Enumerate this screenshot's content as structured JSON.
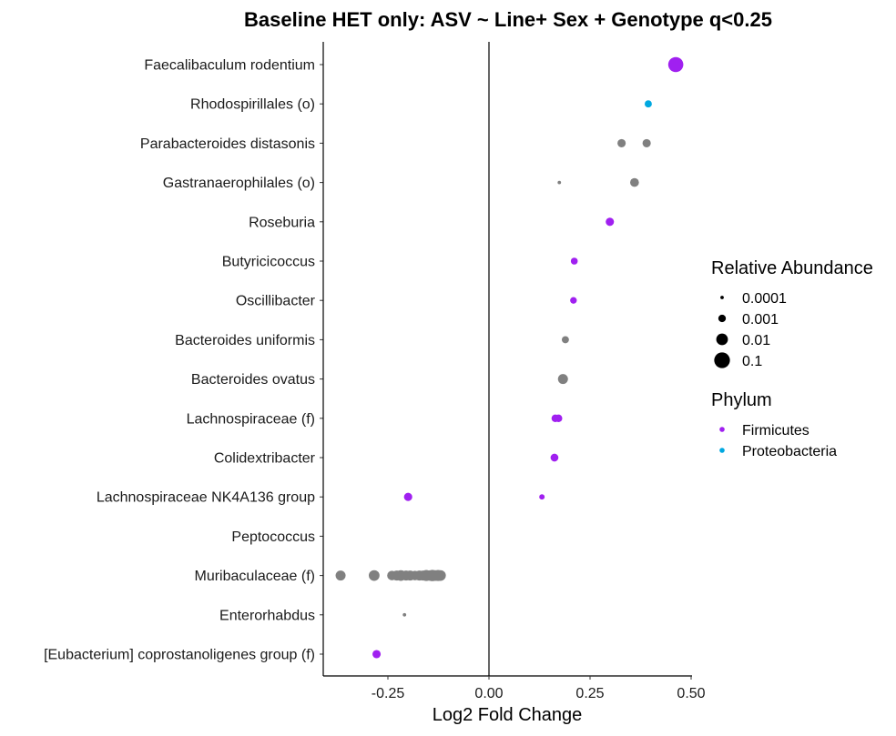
{
  "chart_data": {
    "type": "scatter",
    "title": "Baseline HET only: ASV ~ Line+ Sex + Genotype q<0.25",
    "xlabel": "Log2 Fold Change",
    "ylabel": "",
    "xlim": [
      -0.41,
      0.5
    ],
    "x_ticks": [
      -0.25,
      0.0,
      0.25,
      0.5
    ],
    "x_tick_labels": [
      "-0.25",
      "0.00",
      "0.25",
      "0.50"
    ],
    "reference_line_x": 0,
    "grid": false,
    "legend_position": "right",
    "categories": [
      "Faecalibaculum rodentium",
      "Rhodospirillales (o)",
      "Parabacteroides distasonis",
      "Gastranaerophilales (o)",
      "Roseburia",
      "Butyricicoccus",
      "Oscillibacter",
      "Bacteroides uniformis",
      "Bacteroides ovatus",
      "Lachnospiraceae (f)",
      "Colidextribacter",
      "Lachnospiraceae NK4A136 group",
      "Peptococcus",
      "Muribaculaceae (f)",
      "Enterorhabdus",
      "[Eubacterium] coprostanoligenes group (f)"
    ],
    "colors": {
      "Firmicutes": "#a020f0",
      "Proteobacteria": "#00a8e0",
      "Other": "#808080"
    },
    "size_legend": {
      "title": "Relative Abundance",
      "values": [
        0.0001,
        0.001,
        0.01,
        0.1
      ],
      "labels": [
        "0.0001",
        "0.001",
        "0.01",
        "0.1"
      ]
    },
    "color_legend": {
      "title": "Phylum",
      "entries": [
        "Firmicutes",
        "Proteobacteria"
      ]
    },
    "points": [
      {
        "category": "Faecalibaculum rodentium",
        "x": 0.462,
        "abundance": 0.07,
        "phylum": "Firmicutes"
      },
      {
        "category": "Rhodospirillales (o)",
        "x": 0.394,
        "abundance": 0.0008,
        "phylum": "Proteobacteria"
      },
      {
        "category": "Parabacteroides distasonis",
        "x": 0.328,
        "abundance": 0.0015,
        "phylum": "Other"
      },
      {
        "category": "Parabacteroides distasonis",
        "x": 0.39,
        "abundance": 0.0015,
        "phylum": "Other"
      },
      {
        "category": "Gastranaerophilales (o)",
        "x": 0.174,
        "abundance": 0.0001,
        "phylum": "Other"
      },
      {
        "category": "Gastranaerophilales (o)",
        "x": 0.36,
        "abundance": 0.002,
        "phylum": "Other"
      },
      {
        "category": "Roseburia",
        "x": 0.299,
        "abundance": 0.0015,
        "phylum": "Firmicutes"
      },
      {
        "category": "Butyricicoccus",
        "x": 0.211,
        "abundance": 0.0007,
        "phylum": "Firmicutes"
      },
      {
        "category": "Oscillibacter",
        "x": 0.209,
        "abundance": 0.0006,
        "phylum": "Firmicutes"
      },
      {
        "category": "Bacteroides uniformis",
        "x": 0.189,
        "abundance": 0.0008,
        "phylum": "Other"
      },
      {
        "category": "Bacteroides ovatus",
        "x": 0.183,
        "abundance": 0.004,
        "phylum": "Other"
      },
      {
        "category": "Lachnospiraceae (f)",
        "x": 0.164,
        "abundance": 0.001,
        "phylum": "Firmicutes"
      },
      {
        "category": "Lachnospiraceae (f)",
        "x": 0.172,
        "abundance": 0.001,
        "phylum": "Firmicutes"
      },
      {
        "category": "Colidextribacter",
        "x": 0.162,
        "abundance": 0.0012,
        "phylum": "Firmicutes"
      },
      {
        "category": "Lachnospiraceae NK4A136 group",
        "x": -0.2,
        "abundance": 0.0015,
        "phylum": "Firmicutes"
      },
      {
        "category": "Lachnospiraceae NK4A136 group",
        "x": 0.131,
        "abundance": 0.0003,
        "phylum": "Firmicutes"
      },
      {
        "category": "Muribaculaceae (f)",
        "x": -0.367,
        "abundance": 0.004,
        "phylum": "Other"
      },
      {
        "category": "Muribaculaceae (f)",
        "x": -0.284,
        "abundance": 0.006,
        "phylum": "Other"
      },
      {
        "category": "Muribaculaceae (f)",
        "x": -0.24,
        "abundance": 0.003,
        "phylum": "Other"
      },
      {
        "category": "Muribaculaceae (f)",
        "x": -0.228,
        "abundance": 0.004,
        "phylum": "Other"
      },
      {
        "category": "Muribaculaceae (f)",
        "x": -0.218,
        "abundance": 0.006,
        "phylum": "Other"
      },
      {
        "category": "Muribaculaceae (f)",
        "x": -0.205,
        "abundance": 0.004,
        "phylum": "Other"
      },
      {
        "category": "Muribaculaceae (f)",
        "x": -0.195,
        "abundance": 0.004,
        "phylum": "Other"
      },
      {
        "category": "Muribaculaceae (f)",
        "x": -0.183,
        "abundance": 0.003,
        "phylum": "Other"
      },
      {
        "category": "Muribaculaceae (f)",
        "x": -0.172,
        "abundance": 0.004,
        "phylum": "Other"
      },
      {
        "category": "Muribaculaceae (f)",
        "x": -0.163,
        "abundance": 0.004,
        "phylum": "Other"
      },
      {
        "category": "Muribaculaceae (f)",
        "x": -0.155,
        "abundance": 0.007,
        "phylum": "Other"
      },
      {
        "category": "Muribaculaceae (f)",
        "x": -0.146,
        "abundance": 0.005,
        "phylum": "Other"
      },
      {
        "category": "Muribaculaceae (f)",
        "x": -0.14,
        "abundance": 0.008,
        "phylum": "Other"
      },
      {
        "category": "Muribaculaceae (f)",
        "x": -0.133,
        "abundance": 0.006,
        "phylum": "Other"
      },
      {
        "category": "Muribaculaceae (f)",
        "x": -0.126,
        "abundance": 0.007,
        "phylum": "Other"
      },
      {
        "category": "Muribaculaceae (f)",
        "x": -0.12,
        "abundance": 0.006,
        "phylum": "Other"
      },
      {
        "category": "Enterorhabdus",
        "x": -0.209,
        "abundance": 0.0001,
        "phylum": "Other"
      },
      {
        "category": "[Eubacterium] coprostanoligenes group (f)",
        "x": -0.278,
        "abundance": 0.0015,
        "phylum": "Firmicutes"
      }
    ]
  }
}
